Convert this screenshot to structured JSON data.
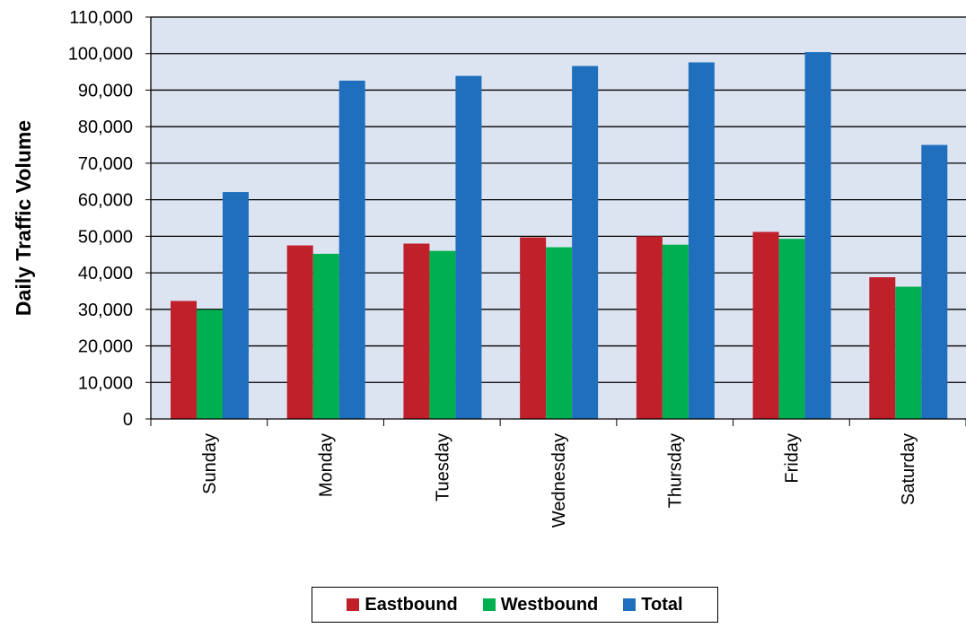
{
  "chart_data": {
    "type": "bar",
    "title": "",
    "xlabel": "",
    "ylabel": "Daily Traffic Volume",
    "ylim": [
      0,
      110000
    ],
    "ytick_step": 10000,
    "yticks": [
      "0",
      "10,000",
      "20,000",
      "30,000",
      "40,000",
      "50,000",
      "60,000",
      "70,000",
      "80,000",
      "90,000",
      "100,000",
      "110,000"
    ],
    "categories": [
      "Sunday",
      "Monday",
      "Tuesday",
      "Wednesday",
      "Thursday",
      "Friday",
      "Saturday"
    ],
    "series": [
      {
        "name": "Eastbound",
        "color": "#c0202a",
        "values": [
          32300,
          47500,
          48000,
          49700,
          50000,
          51200,
          38800
        ]
      },
      {
        "name": "Westbound",
        "color": "#00b050",
        "values": [
          29900,
          45200,
          46000,
          47000,
          47700,
          49300,
          36200
        ]
      },
      {
        "name": "Total",
        "color": "#1f6fbd",
        "values": [
          62100,
          92600,
          93900,
          96600,
          97600,
          100400,
          75000
        ]
      }
    ],
    "grid": true,
    "plot_background": "#dde4f1",
    "legend_position": "bottom"
  }
}
